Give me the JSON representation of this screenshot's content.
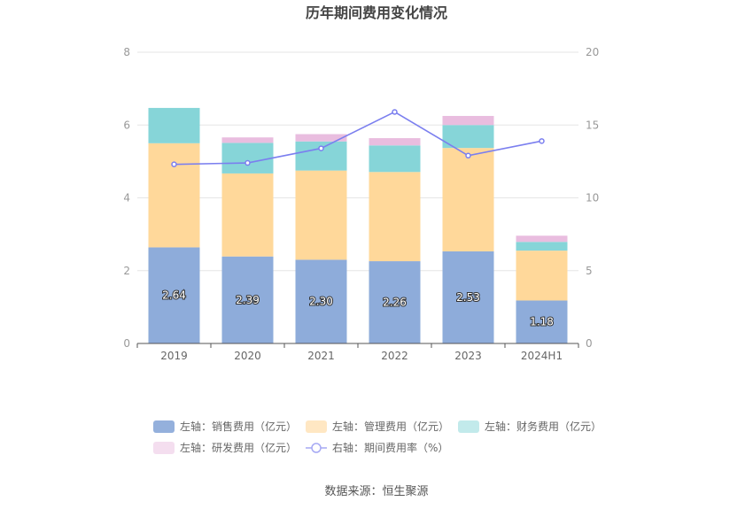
{
  "chart_data": {
    "type": "bar",
    "title": "历年期间费用变化情况",
    "categories": [
      "2019",
      "2020",
      "2021",
      "2022",
      "2023",
      "2024H1"
    ],
    "ylim_left": [
      0,
      8
    ],
    "yticks_left": [
      "0",
      "2",
      "4",
      "6",
      "8"
    ],
    "ylim_right": [
      0,
      20
    ],
    "yticks_right": [
      "0",
      "5",
      "10",
      "15",
      "20"
    ],
    "stacked": true,
    "grid": true,
    "legend_position": "bottom",
    "series": [
      {
        "name": "左轴：销售费用（亿元）",
        "type": "bar",
        "axis": "left",
        "color": "#8eacda",
        "values": [
          2.64,
          2.39,
          2.3,
          2.26,
          2.53,
          1.18
        ],
        "labels": [
          "2.64",
          "2.39",
          "2.30",
          "2.26",
          "2.53",
          "1.18"
        ]
      },
      {
        "name": "左轴：管理费用（亿元）",
        "type": "bar",
        "axis": "left",
        "color": "#ffd89a",
        "values": [
          2.86,
          2.28,
          2.45,
          2.45,
          2.84,
          1.37
        ]
      },
      {
        "name": "左轴：财务费用（亿元）",
        "type": "bar",
        "axis": "left",
        "color": "#86d5d8",
        "values": [
          0.97,
          0.84,
          0.8,
          0.73,
          0.63,
          0.24
        ]
      },
      {
        "name": "左轴：研发费用（亿元）",
        "type": "bar",
        "axis": "left",
        "color": "#e9bddf",
        "values": [
          0,
          0.15,
          0.2,
          0.2,
          0.25,
          0.17
        ]
      },
      {
        "name": "右轴：期间费用率（%）",
        "type": "line",
        "axis": "right",
        "color": "#7b7fef",
        "values": [
          12.3,
          12.4,
          13.4,
          15.9,
          12.9,
          13.9
        ]
      }
    ],
    "source": "数据来源：恒生聚源"
  }
}
